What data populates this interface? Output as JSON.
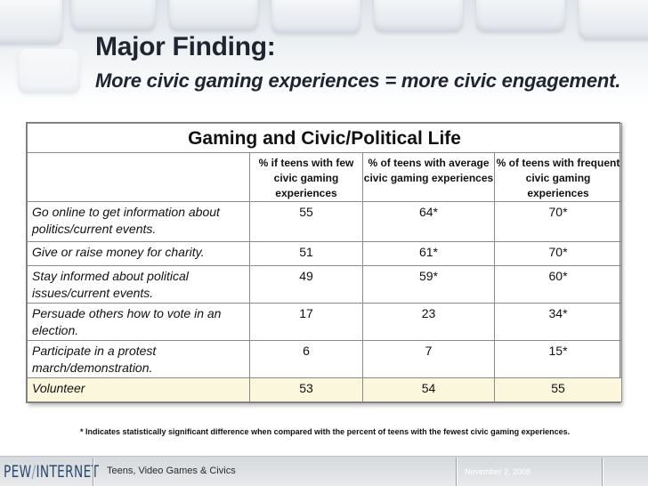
{
  "header": {
    "title": "Major Finding:",
    "subtitle": "More civic gaming experiences = more civic engagement."
  },
  "table": {
    "caption": "Gaming and Civic/Political Life",
    "columns": [
      "",
      "% if teens with few civic gaming experiences",
      "% of teens with average civic gaming experiences",
      "% of teens with frequent civic gaming experiences"
    ],
    "rows": [
      {
        "label": "Go online to get information about politics/current events.",
        "few": "55",
        "average": "64*",
        "frequent": "70*"
      },
      {
        "label": "Give or raise money for charity.",
        "few": "51",
        "average": "61*",
        "frequent": "70*"
      },
      {
        "label": "Stay informed about political issues/current events.",
        "few": "49",
        "average": "59*",
        "frequent": "60*"
      },
      {
        "label": "Persuade others how to vote in an election.",
        "few": "17",
        "average": "23",
        "frequent": "34*"
      },
      {
        "label": "Participate in a protest march/demonstration.",
        "few": "6",
        "average": "7",
        "frequent": "15*"
      },
      {
        "label": "Volunteer",
        "few": "53",
        "average": "54",
        "frequent": "55"
      }
    ]
  },
  "footnote": "* Indicates statistically significant difference when compared with the percent of teens with the fewest civic gaming experiences.",
  "footer": {
    "logo_left": "PEW",
    "logo_slash": "/",
    "logo_right": "INTERNET",
    "title": "Teens, Video Games & Civics",
    "date": "November 2, 2008"
  },
  "colors": {
    "highlight_row": "#fbf7dc",
    "title_text": "#1f2530",
    "logo": "#2a4a6f"
  }
}
